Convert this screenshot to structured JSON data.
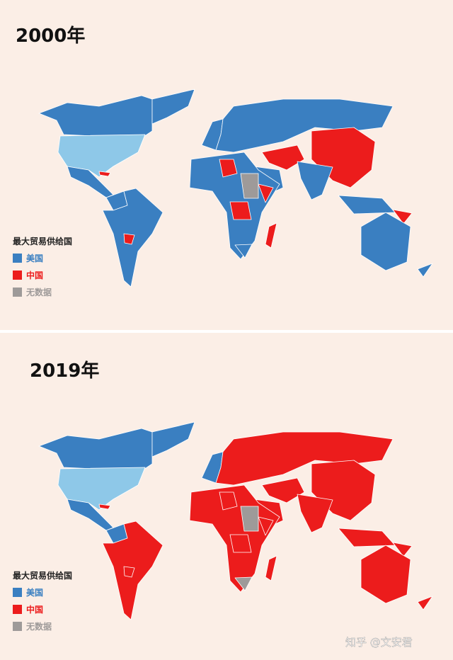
{
  "maps": [
    {
      "title": "2000年",
      "legend": {
        "title": "最大贸易供给国",
        "items": [
          {
            "label": "美国",
            "color": "#3a7fc1"
          },
          {
            "label": "中国",
            "color": "#ec1c1c"
          },
          {
            "label": "无数据",
            "color": "#9e9a99"
          }
        ]
      }
    },
    {
      "title": "2019年",
      "legend": {
        "title": "最大贸易供给国",
        "items": [
          {
            "label": "美国",
            "color": "#3a7fc1"
          },
          {
            "label": "中国",
            "color": "#ec1c1c"
          },
          {
            "label": "无数据",
            "color": "#9e9a99"
          }
        ]
      }
    }
  ],
  "watermark": "知乎 @文安君"
}
